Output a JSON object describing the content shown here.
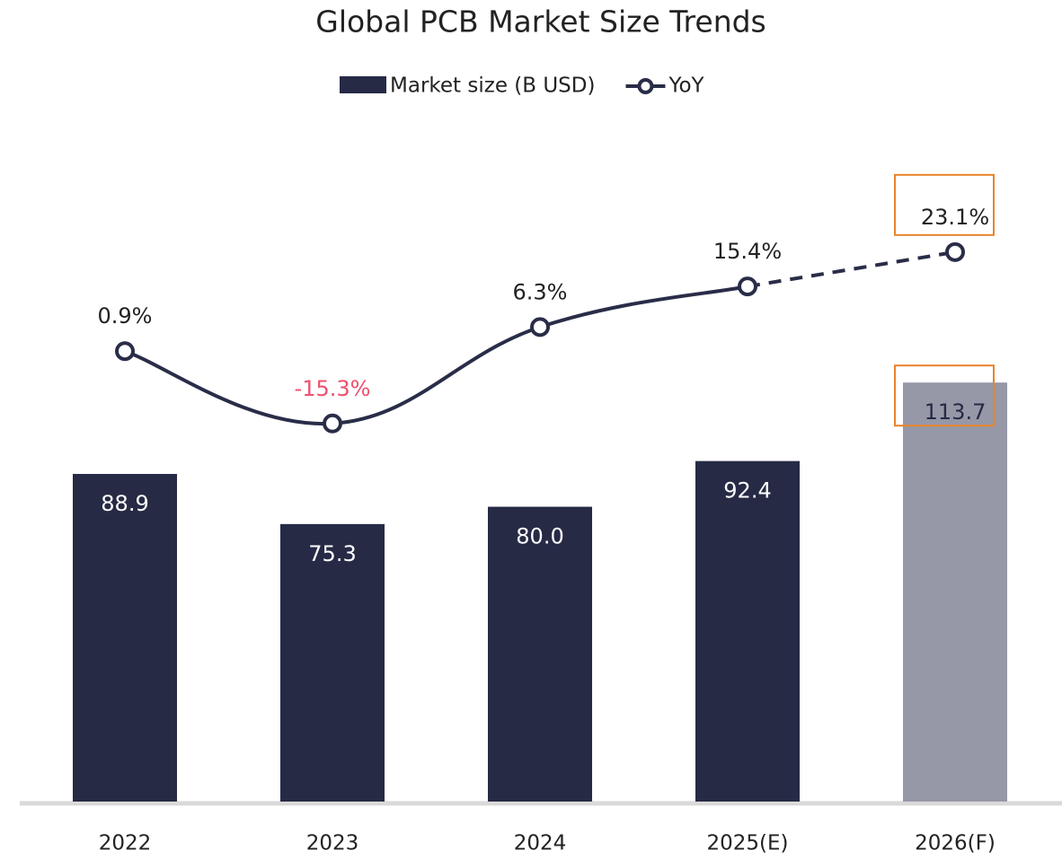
{
  "chart_data": {
    "type": "bar_line",
    "title": "Global PCB Market Size Trends",
    "categories": [
      "2022",
      "2023",
      "2024",
      "2025(E)",
      "2026(F)"
    ],
    "series": [
      {
        "name": "Market size (B USD)",
        "type": "bar",
        "color": "#262a45",
        "colors": [
          "#262a45",
          "#262a45",
          "#262a45",
          "#262a45",
          "#9698a8"
        ],
        "label_colors": [
          "#ffffff",
          "#ffffff",
          "#ffffff",
          "#ffffff",
          "#262a45"
        ],
        "values": [
          88.9,
          75.3,
          80.0,
          92.4,
          113.7
        ],
        "value_labels": [
          "88.9",
          "75.3",
          "80.0",
          "92.4",
          "113.7"
        ]
      },
      {
        "name": "YoY",
        "type": "line",
        "axis": "y2",
        "color": "#2a2d48",
        "negative_color": "#f0506e",
        "segment_styles": [
          "solid",
          "solid",
          "solid",
          "dashed"
        ],
        "values": [
          0.9,
          -15.3,
          6.3,
          15.4,
          23.1
        ],
        "value_labels": [
          "0.9%",
          "-15.3%",
          "6.3%",
          "15.4%",
          "23.1%"
        ]
      }
    ],
    "highlight_color": "#e8832a",
    "ylim": [
      0,
      180
    ],
    "y2lim": [
      -100,
      48.6
    ]
  }
}
